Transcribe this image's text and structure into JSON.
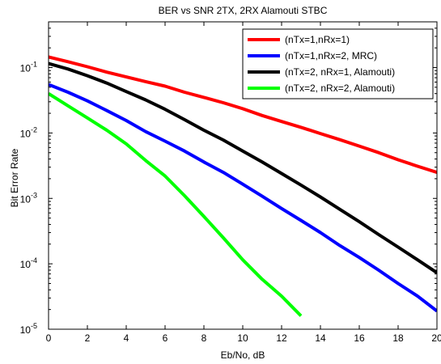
{
  "chart_data": {
    "type": "line",
    "title": "BER vs SNR 2TX, 2RX Alamouti STBC",
    "xlabel": "Eb/No, dB",
    "ylabel": "Bit Error Rate",
    "xlim": [
      0,
      20
    ],
    "ylim": [
      1e-05,
      0.5
    ],
    "yscale": "log",
    "grid": false,
    "legend_position": "top-right",
    "x_ticks": [
      "0",
      "2",
      "4",
      "6",
      "8",
      "10",
      "12",
      "14",
      "16",
      "18",
      "20"
    ],
    "y_ticks": [
      {
        "base": "10",
        "exp": "-5"
      },
      {
        "base": "10",
        "exp": "-4"
      },
      {
        "base": "10",
        "exp": "-3"
      },
      {
        "base": "10",
        "exp": "-2"
      },
      {
        "base": "10",
        "exp": "-1"
      }
    ],
    "x": [
      0,
      1,
      2,
      3,
      4,
      5,
      6,
      7,
      8,
      9,
      10,
      11,
      12,
      13,
      14,
      15,
      16,
      17,
      18,
      19,
      20
    ],
    "series": [
      {
        "name": "(nTx=1,nRx=1)",
        "color": "#ff0000",
        "values": [
          0.145,
          0.123,
          0.103,
          0.085,
          0.072,
          0.061,
          0.052,
          0.042,
          0.035,
          0.029,
          0.0235,
          0.0185,
          0.015,
          0.0122,
          0.0098,
          0.0079,
          0.0063,
          0.005,
          0.0039,
          0.0031,
          0.0025
        ]
      },
      {
        "name": "(nTx=1,nRx=2, MRC)",
        "color": "#0000ff",
        "values": [
          0.055,
          0.042,
          0.031,
          0.022,
          0.0155,
          0.0105,
          0.0075,
          0.0053,
          0.0036,
          0.0025,
          0.00165,
          0.00108,
          0.0007,
          0.00046,
          0.0003,
          0.00019,
          0.000125,
          8e-05,
          5e-05,
          3.2e-05,
          1.9e-05
        ]
      },
      {
        "name": "(nTx=2, nRx=1, Alamouti)",
        "color": "#000000",
        "values": [
          0.115,
          0.095,
          0.075,
          0.058,
          0.043,
          0.032,
          0.023,
          0.016,
          0.011,
          0.0078,
          0.0053,
          0.0036,
          0.0024,
          0.0016,
          0.00105,
          0.00068,
          0.00044,
          0.00028,
          0.00018,
          0.000115,
          7.3e-05
        ]
      },
      {
        "name": "(nTx=2, nRx=2, Alamouti)",
        "color": "#00ff00",
        "values": [
          0.04,
          0.026,
          0.017,
          0.011,
          0.0068,
          0.0038,
          0.0022,
          0.0011,
          0.00053,
          0.00025,
          0.000115,
          5.8e-05,
          3.2e-05,
          1.6e-05,
          null,
          null,
          null,
          null,
          null,
          null,
          null
        ]
      }
    ]
  }
}
